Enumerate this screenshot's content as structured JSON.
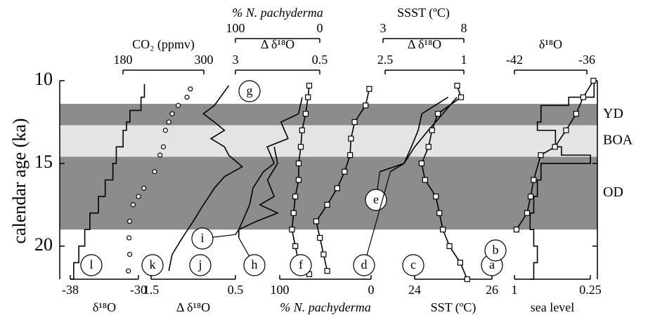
{
  "chart_data": {
    "type": "profile",
    "y_label": "calendar age (ka)",
    "ylim": [
      10,
      22
    ],
    "yticks": [
      10,
      15,
      20
    ],
    "zones": [
      {
        "label": "YD",
        "from": 11.4,
        "to": 12.7,
        "color": "#8c8c8c"
      },
      {
        "label": "BOA",
        "from": 12.7,
        "to": 14.6,
        "color": "#e4e4e4"
      },
      {
        "label": "OD",
        "from": 14.6,
        "to": 19.0,
        "color": "#8c8c8c"
      }
    ],
    "axes": [
      {
        "label": "δ¹⁸O",
        "side": "bottom",
        "xlim": [
          -38,
          -30
        ],
        "xticks": [
          -38,
          -30
        ],
        "series": [
          {
            "name": "l",
            "style": "step",
            "color": "#000",
            "ages": [
              10.2,
              11,
              11.8,
              12.5,
              13,
              14,
              15,
              16,
              17,
              18,
              19,
              20,
              21,
              22
            ],
            "values": [
              -29.3,
              -29.7,
              -31,
              -31.4,
              -31.8,
              -32.6,
              -33,
              -33.9,
              -34.7,
              -35.7,
              -36.3,
              -37,
              -37.6,
              -38
            ]
          }
        ]
      },
      {
        "label": "CO₂ (ppmv)",
        "side": "top",
        "xlim": [
          180,
          300
        ],
        "xticks": [
          180,
          300
        ],
        "series": [
          {
            "name": "k",
            "style": "circle",
            "color": "#000",
            "ages": [
              10.5,
              11,
              11.5,
              12,
              12.5,
              13,
              14,
              14.5,
              15.5,
              16.5,
              17,
              17.5,
              18.5,
              19.5,
              20.5,
              21.5
            ],
            "values": [
              280,
              275,
              262,
              253,
              248,
              243,
              240,
              235,
              227,
              211,
              203,
              195,
              190,
              189,
              190,
              188
            ]
          }
        ]
      },
      {
        "label": "Δ δ¹⁸O",
        "side": "bottom",
        "xlim": [
          1.5,
          0.5
        ],
        "xticks": [
          1.5,
          0.5
        ],
        "series": [
          {
            "name": "j",
            "style": "line",
            "color": "#000",
            "ages": [
              10.3,
              11.5,
              12,
              12.5,
              13,
              13.5,
              14,
              14.5,
              15.2,
              15.8,
              16.5,
              17.5,
              18.5,
              19.5,
              20.5,
              21.5
            ],
            "values": [
              0.58,
              0.75,
              0.88,
              0.75,
              0.63,
              0.79,
              0.63,
              0.58,
              0.42,
              0.63,
              0.75,
              0.88,
              1.0,
              1.13,
              1.25,
              1.29
            ]
          }
        ]
      },
      {
        "label": "% N. pachyderma",
        "side": "top",
        "xlim": [
          100,
          0
        ],
        "xticks": [
          100,
          0
        ],
        "series": [
          {
            "name": "g",
            "style": "line-square",
            "color": "#000",
            "ages": [
              10.3,
              11,
              12,
              13,
              14,
              15,
              16,
              17,
              18,
              19,
              20,
              21,
              21.7
            ],
            "values": [
              12.5,
              14,
              16.7,
              21,
              22.5,
              25,
              25,
              29,
              31,
              33,
              29,
              25,
              12.5
            ]
          },
          {
            "name": "i",
            "style": "line",
            "color": "#000",
            "ages": [
              14,
              15,
              16,
              17,
              17.5,
              18,
              18.5,
              19,
              19.3
            ],
            "values": [
              54,
              50,
              62,
              54,
              71,
              50,
              75,
              96,
              100
            ]
          }
        ]
      },
      {
        "label": "Δ δ¹⁸O",
        "side": "top",
        "xlim": [
          3,
          0.5
        ],
        "xticks": [
          3,
          0.5
        ],
        "series": [
          {
            "name": "h",
            "style": "line",
            "color": "#000",
            "ages": [
              11,
              12,
              12.5,
              13.5,
              14,
              15,
              15.5,
              16.5,
              17.5,
              18.5,
              19,
              19.5
            ],
            "values": [
              1.02,
              1.13,
              1.65,
              1.44,
              2.06,
              1.85,
              2.17,
              2.48,
              2.58,
              2.79,
              2.9,
              2.9
            ]
          }
        ]
      },
      {
        "label": "% N. pachyderma",
        "side": "bottom",
        "xlim": [
          100,
          0
        ],
        "xticks": [
          100,
          0
        ],
        "series": [
          {
            "name": "f",
            "style": "line-square",
            "color": "#000",
            "ages": [
              10.5,
              11.5,
              12.5,
              13.5,
              14.5,
              15.5,
              16.5,
              17.5,
              18.5,
              19.5,
              20.5,
              21.5
            ],
            "values": [
              2,
              6,
              18,
              22,
              23,
              29,
              37,
              48,
              60,
              56,
              52,
              48
            ]
          }
        ]
      },
      {
        "label": "SSST (ºC)",
        "side": "top",
        "xlim": [
          3,
          8
        ],
        "xticks": [
          3,
          8
        ],
        "series": [
          {
            "name": "e",
            "style": "line",
            "color": "#000",
            "ages": [
              11,
              12,
              13,
              14,
              15,
              15.5
            ],
            "values": [
              7.57,
              6.7,
              5.8,
              4.96,
              4.3,
              2.8
            ]
          }
        ]
      },
      {
        "label": "Δ δ¹⁸O",
        "side": "top",
        "xlim": [
          2.5,
          1
        ],
        "xticks": [
          2.5,
          1
        ],
        "series": [
          {
            "name": "d",
            "style": "line",
            "color": "#000",
            "ages": [
              11,
              12,
              13,
              14,
              15,
              15.5
            ],
            "values": [
              1.3,
              1.8,
              1.87,
              2.0,
              2.14,
              2.4
            ]
          }
        ]
      },
      {
        "label": "SST (ºC)",
        "side": "bottom",
        "xlim": [
          24,
          26
        ],
        "xticks": [
          24,
          26
        ],
        "series": [
          {
            "name": "c",
            "style": "line-square",
            "color": "#000",
            "ages": [
              10.3,
              11,
              12,
              13,
              14,
              15,
              16,
              17,
              18,
              19,
              20,
              21,
              22
            ],
            "values": [
              25.1,
              25.2,
              24.6,
              24.45,
              24.36,
              24.18,
              24.27,
              24.55,
              24.64,
              24.73,
              24.9,
              25.18,
              25.36
            ]
          }
        ]
      },
      {
        "label": "δ¹⁸O",
        "side": "top",
        "xlim": [
          -42,
          -36
        ],
        "xticks": [
          -42,
          -36
        ],
        "series": [
          {
            "name": "a",
            "style": "step",
            "color": "#000",
            "ages": [
              10,
              11,
              11.5,
              12.5,
              13,
              14,
              14.5,
              15,
              16,
              17,
              18,
              19,
              20,
              21,
              22
            ],
            "values": [
              -35.4,
              -37.5,
              -39.8,
              -40.1,
              -38.6,
              -38.1,
              -35.7,
              -39.8,
              -40.1,
              -40.4,
              -40.7,
              -40.4,
              -40.1,
              -40.4,
              -40.7
            ]
          }
        ]
      },
      {
        "label": "sea level",
        "side": "bottom",
        "xlim": [
          1,
          0.25
        ],
        "xticks": [
          1,
          0.25
        ],
        "series": [
          {
            "name": "b",
            "style": "line-square",
            "color": "#000",
            "ages": [
              10,
              11,
              12,
              13,
              14,
              14.5,
              16,
              17,
              18,
              19
            ],
            "values": [
              0.22,
              0.32,
              0.39,
              0.49,
              0.6,
              0.74,
              0.81,
              0.84,
              0.875,
              0.98
            ]
          }
        ]
      }
    ]
  }
}
